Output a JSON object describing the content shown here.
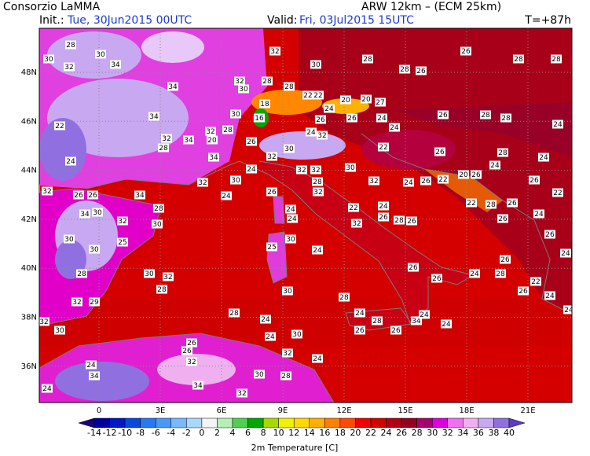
{
  "header": {
    "title": "Consorzio LaMMA",
    "model": "ARW 12km – (ECM 25km)",
    "init_label": "Init.:",
    "init": "Tue, 30Jun2015 00UTC",
    "valid_label": "Valid:",
    "valid": "Fri, 03Jul2015 15UTC",
    "lead": "T=+87h"
  },
  "map": {
    "xticks": [
      0,
      {
        "value": 3,
        "label": "3E"
      },
      {
        "value": 6,
        "label": "6E"
      },
      {
        "value": 9,
        "label": "9E"
      },
      {
        "value": 12,
        "label": "12E"
      },
      {
        "value": 15,
        "label": "15E"
      },
      {
        "value": 18,
        "label": "18E"
      },
      {
        "value": 21,
        "label": "21E"
      }
    ],
    "yticks": [
      {
        "value": 48,
        "label": "48N"
      },
      {
        "value": 46,
        "label": "46N"
      },
      {
        "value": 44,
        "label": "44N"
      },
      {
        "value": 42,
        "label": "42N"
      },
      {
        "value": 40,
        "label": "40N"
      },
      {
        "value": 38,
        "label": "38N"
      },
      {
        "value": 36,
        "label": "36N"
      }
    ],
    "grid": true,
    "stations": [
      28,
      30,
      34,
      32,
      30,
      34,
      32,
      30,
      28,
      28,
      26,
      26,
      28,
      28,
      32,
      30,
      28,
      28,
      22,
      22,
      20,
      20,
      27,
      24,
      18,
      16,
      30,
      26,
      26,
      24,
      26,
      28,
      28,
      24,
      22,
      34,
      32,
      28,
      20,
      32,
      34,
      28,
      34,
      26,
      30,
      32,
      24,
      32,
      24,
      22,
      26,
      28,
      24,
      24,
      24,
      30,
      32,
      32,
      32,
      30,
      20,
      26,
      24,
      22,
      26,
      22,
      28,
      32,
      24,
      26,
      30,
      32,
      26,
      26,
      34,
      24,
      26,
      32,
      22,
      28,
      26,
      24,
      28,
      24,
      22,
      24,
      26,
      28,
      26,
      34,
      30,
      32,
      30,
      24,
      32,
      26,
      26,
      30,
      25,
      25,
      30,
      24,
      30,
      26,
      26,
      24,
      28,
      30,
      32,
      24,
      28,
      26,
      22,
      28,
      30,
      26,
      24,
      32,
      29,
      28,
      24,
      32,
      30,
      28,
      24,
      24,
      28,
      34,
      24,
      24,
      26,
      26,
      24,
      30,
      26,
      26,
      32,
      32,
      24,
      24,
      34,
      30,
      28,
      34,
      32,
      24
    ]
  },
  "colorbar": {
    "title": "2m Temperature [C]",
    "levels": [
      -14,
      -12,
      -10,
      -8,
      -6,
      -4,
      -2,
      0,
      2,
      4,
      6,
      8,
      10,
      12,
      14,
      16,
      18,
      20,
      22,
      24,
      26,
      28,
      30,
      32,
      34,
      36,
      38,
      40
    ],
    "colors": [
      "#1a0080",
      "#0000a0",
      "#0018c8",
      "#0848e0",
      "#2878f0",
      "#4a98f8",
      "#78b8ff",
      "#a8d8ff",
      "#f4f4f4",
      "#b4f0b4",
      "#50d050",
      "#00a800",
      "#a8d800",
      "#f0f000",
      "#ffd800",
      "#ffb000",
      "#ff8000",
      "#ff4800",
      "#f00000",
      "#d20000",
      "#b40014",
      "#960020",
      "#a8006e",
      "#dc00dc",
      "#f070f0",
      "#f0b0f0",
      "#c8a8f0",
      "#9070e0",
      "#5a3cc8"
    ]
  }
}
